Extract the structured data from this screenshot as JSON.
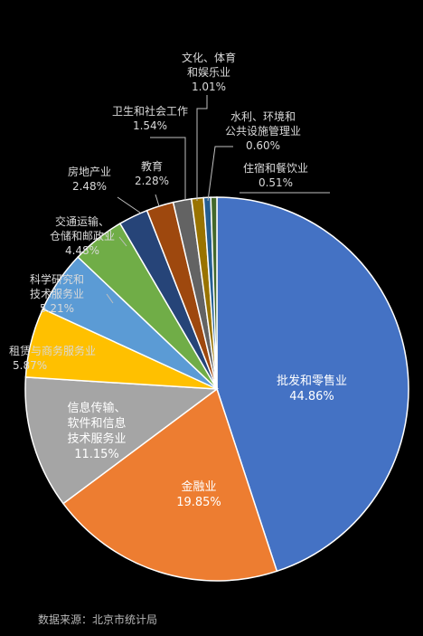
{
  "chart_data": {
    "type": "pie",
    "categories": [
      "批发和零售业",
      "金融业",
      "信息传输、软件和信息技术服务业",
      "租赁与商务服务业",
      "科学研究和技术服务业",
      "交通运输、仓储和邮政业",
      "房地产业",
      "教育",
      "卫生和社会工作",
      "文化、体育和娱乐业",
      "水利、环境和公共设施管理业",
      "住宿和餐饮业"
    ],
    "values": [
      44.86,
      19.85,
      11.15,
      5.87,
      5.21,
      4.48,
      2.48,
      2.28,
      1.54,
      1.01,
      0.6,
      0.51
    ],
    "value_labels": [
      "44.86%",
      "19.85%",
      "11.15%",
      "5.87%",
      "5.21%",
      "4.48%",
      "2.48%",
      "2.28%",
      "1.54%",
      "1.01%",
      "0.60%",
      "0.51%"
    ],
    "label_lines": [
      [
        "批发和零售业"
      ],
      [
        "金融业"
      ],
      [
        "信息传输、",
        "软件和信息",
        "技术服务业"
      ],
      [
        "租赁与商务服务业"
      ],
      [
        "科学研究和",
        "技术服务业"
      ],
      [
        "交通运输、",
        "仓储和邮政业"
      ],
      [
        "房地产业"
      ],
      [
        "教育"
      ],
      [
        "卫生和社会工作"
      ],
      [
        "文化、体育",
        "和娱乐业"
      ],
      [
        "水利、环境和",
        "公共设施管理业"
      ],
      [
        "住宿和餐饮业"
      ]
    ],
    "colors": [
      "#4472C4",
      "#ED7D31",
      "#A5A5A5",
      "#FFC000",
      "#5B9BD5",
      "#70AD47",
      "#264478",
      "#9E480E",
      "#636363",
      "#997300",
      "#255E91",
      "#43682B"
    ],
    "title": "",
    "legend": "none"
  },
  "source_text": "数据来源：北京市统计局"
}
